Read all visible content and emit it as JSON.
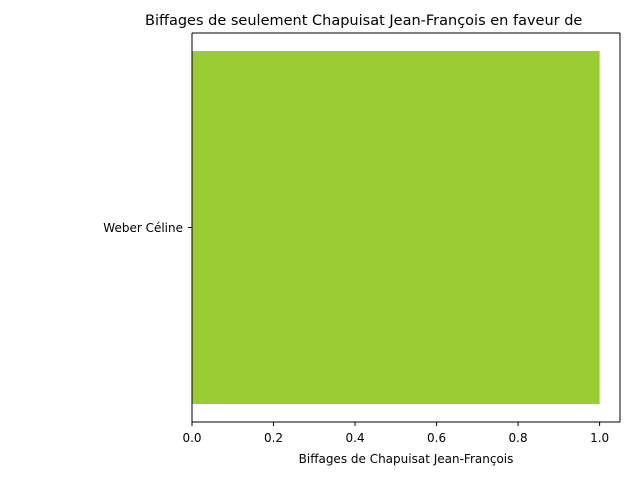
{
  "chart_data": {
    "type": "bar",
    "orientation": "horizontal",
    "title": "Biffages de seulement Chapuisat Jean-François en faveur de",
    "xlabel": "Biffages de Chapuisat Jean-François",
    "ylabel": "",
    "categories": [
      "Weber Céline"
    ],
    "values": [
      1.0
    ],
    "xlim": [
      0,
      1.05
    ],
    "xticks": [
      "0.0",
      "0.2",
      "0.4",
      "0.6",
      "0.8",
      "1.0"
    ],
    "bar_color": "#9acd32",
    "grid": false,
    "legend": "none"
  }
}
